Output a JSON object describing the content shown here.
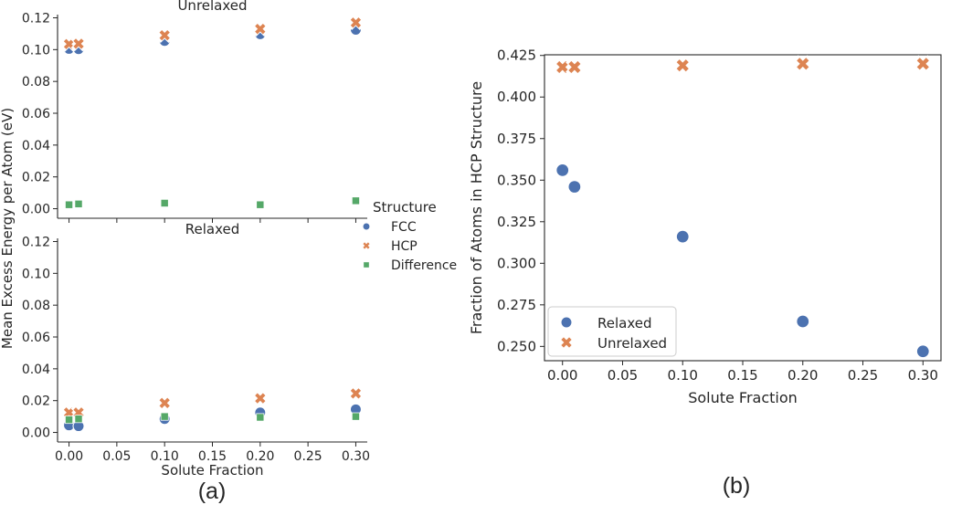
{
  "captions": {
    "a": "(a)",
    "b": "(b)"
  },
  "colors": {
    "FCC": "#4c72b0",
    "HCP": "#dd8452",
    "Difference": "#55a868",
    "axis": "#262626"
  },
  "chart_data": [
    {
      "panel": "a",
      "type": "scatter",
      "subplots": [
        {
          "title": "Unrelaxed",
          "ylabel": "",
          "ylim": [
            -0.006,
            0.122
          ],
          "yticks": [
            0.0,
            0.02,
            0.04,
            0.06,
            0.08,
            0.1,
            0.12
          ],
          "ytick_labels": [
            "0.00",
            "0.02",
            "0.04",
            "0.06",
            "0.08",
            "0.10",
            "0.12"
          ],
          "series": [
            {
              "name": "FCC",
              "marker": "circle",
              "x": [
                0.0,
                0.01,
                0.1,
                0.2,
                0.3
              ],
              "y": [
                0.1005,
                0.1003,
                0.1055,
                0.1097,
                0.1125
              ]
            },
            {
              "name": "HCP",
              "marker": "x",
              "x": [
                0.0,
                0.01,
                0.1,
                0.2,
                0.3
              ],
              "y": [
                0.1035,
                0.1037,
                0.109,
                0.113,
                0.117
              ]
            },
            {
              "name": "Difference",
              "marker": "square",
              "x": [
                0.0,
                0.01,
                0.1,
                0.2,
                0.3
              ],
              "y": [
                0.0025,
                0.003,
                0.0035,
                0.0025,
                0.005
              ]
            }
          ]
        },
        {
          "title": "Relaxed",
          "ylabel": "",
          "ylim": [
            -0.006,
            0.122
          ],
          "yticks": [
            0.0,
            0.02,
            0.04,
            0.06,
            0.08,
            0.1,
            0.12
          ],
          "ytick_labels": [
            "0.00",
            "0.02",
            "0.04",
            "0.06",
            "0.08",
            "0.10",
            "0.12"
          ],
          "series": [
            {
              "name": "FCC",
              "marker": "circle",
              "x": [
                0.0,
                0.01,
                0.1,
                0.2,
                0.3
              ],
              "y": [
                0.0045,
                0.004,
                0.0085,
                0.0125,
                0.0145
              ]
            },
            {
              "name": "HCP",
              "marker": "x",
              "x": [
                0.0,
                0.01,
                0.1,
                0.2,
                0.3
              ],
              "y": [
                0.0125,
                0.0125,
                0.0185,
                0.0215,
                0.0245
              ]
            },
            {
              "name": "Difference",
              "marker": "square",
              "x": [
                0.0,
                0.01,
                0.1,
                0.2,
                0.3
              ],
              "y": [
                0.008,
                0.0085,
                0.01,
                0.0095,
                0.01
              ]
            }
          ]
        }
      ],
      "shared_ylabel": "Mean Excess Energy per Atom (eV)",
      "xlabel": "Solute Fraction",
      "xlim": [
        -0.012,
        0.312
      ],
      "xticks": [
        0.0,
        0.05,
        0.1,
        0.15,
        0.2,
        0.25,
        0.3
      ],
      "xtick_labels": [
        "0.00",
        "0.05",
        "0.10",
        "0.15",
        "0.20",
        "0.25",
        "0.30"
      ],
      "legend": {
        "title": "Structure",
        "entries": [
          "FCC",
          "HCP",
          "Difference"
        ],
        "placement": "right"
      }
    },
    {
      "panel": "b",
      "type": "scatter",
      "title": "",
      "xlabel": "Solute Fraction",
      "ylabel": "Fraction of Atoms in HCP Structure",
      "xlim": [
        -0.015,
        0.315
      ],
      "ylim": [
        0.2414,
        0.4254
      ],
      "xticks": [
        0.0,
        0.05,
        0.1,
        0.15,
        0.2,
        0.25,
        0.3
      ],
      "xtick_labels": [
        "0.00",
        "0.05",
        "0.10",
        "0.15",
        "0.20",
        "0.25",
        "0.30"
      ],
      "yticks": [
        0.25,
        0.275,
        0.3,
        0.325,
        0.35,
        0.375,
        0.4,
        0.425
      ],
      "ytick_labels": [
        "0.250",
        "0.275",
        "0.300",
        "0.325",
        "0.350",
        "0.375",
        "0.400",
        "0.425"
      ],
      "series": [
        {
          "name": "Relaxed",
          "marker": "circle",
          "color": "#4c72b0",
          "x": [
            0.0,
            0.01,
            0.1,
            0.2,
            0.3
          ],
          "y": [
            0.356,
            0.346,
            0.316,
            0.265,
            0.247
          ]
        },
        {
          "name": "Unrelaxed",
          "marker": "x",
          "color": "#dd8452",
          "x": [
            0.0,
            0.01,
            0.1,
            0.2,
            0.3
          ],
          "y": [
            0.418,
            0.418,
            0.419,
            0.42,
            0.42
          ]
        }
      ],
      "legend": {
        "entries": [
          "Relaxed",
          "Unrelaxed"
        ],
        "placement": "lower-left",
        "frame": true
      }
    }
  ]
}
